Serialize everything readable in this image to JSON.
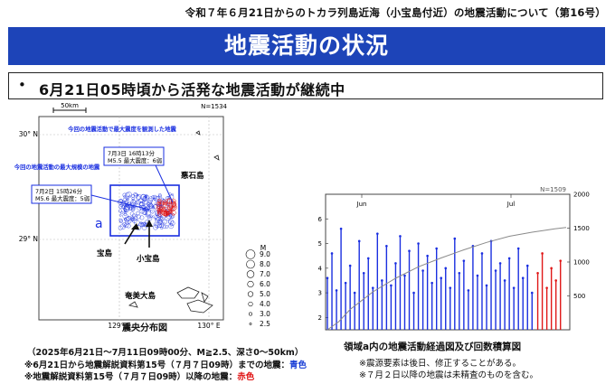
{
  "header": {
    "note": "令和７年６月21日からのトカラ列島近海（小宝島付近）の地震活動について（第16号）"
  },
  "title": "地震活動の状況",
  "bullet": {
    "text": "6月21日05時頃から活発な地震活動が継続中"
  },
  "map": {
    "scale_label": "50km",
    "n_label": "N=1534",
    "lat_labels": [
      "30° N",
      "29° N"
    ],
    "lon_labels": [
      "129° E",
      "130° E"
    ],
    "legend_title": "M",
    "legend_values": [
      "9.0",
      "8.0",
      "7.0",
      "6.0",
      "5.0",
      "4.0",
      "3.0",
      "2.5"
    ],
    "annotation_top": "今回の地震活動で最大震度を観測した地震",
    "annotation_top_box": [
      "7月3日 16時13分",
      "M5.5 最大震度：6弱"
    ],
    "annotation_left": "今回の地震活動の最大規模の地震",
    "annotation_left_box": [
      "7月2日 15時26分",
      "M5.6 最大震度：5弱"
    ],
    "region_label": "a",
    "places": {
      "akuseki": "悪石島",
      "takara": "宝島",
      "kodakara": "小宝島",
      "amami": "奄美大島"
    },
    "caption": "震央分布図",
    "caption_sub": "（2025年6月21日～7月11日09時00分、M≧2.5、深さ0～50km）"
  },
  "footnotes": {
    "line1_a": "※6月21日から地震解説資料第15号（７月７日09時）までの地震：",
    "line1_b": "青色",
    "line2_a": "※地震解説資料第15号（７月７日09時）以降の地震：",
    "line2_b": "赤色"
  },
  "chart_data": {
    "type": "bar",
    "title": "領域a内の地震活動経過図及び回数積算図",
    "n_label": "N=1509",
    "x_tick_labels": [
      "Jun",
      "Jul"
    ],
    "ylim_left": [
      1.5,
      7
    ],
    "y_ticks_left": [
      2,
      3,
      4,
      5,
      6
    ],
    "ylim_right": [
      0,
      2000
    ],
    "y_ticks_right": [
      500,
      1000,
      1500,
      2000
    ],
    "series_colors": {
      "before": "#1a2fe0",
      "after": "#e01818",
      "cumulative": "#8a8a8a"
    },
    "bars": [
      {
        "x": 0,
        "m": 3.6
      },
      {
        "x": 0.4,
        "m": 4.6
      },
      {
        "x": 0.8,
        "m": 3.1
      },
      {
        "x": 1.2,
        "m": 5.6
      },
      {
        "x": 1.6,
        "m": 3.4
      },
      {
        "x": 2.0,
        "m": 4.1
      },
      {
        "x": 2.4,
        "m": 3.0
      },
      {
        "x": 2.8,
        "m": 5.1
      },
      {
        "x": 3.2,
        "m": 3.8
      },
      {
        "x": 3.6,
        "m": 4.4
      },
      {
        "x": 4.0,
        "m": 3.2
      },
      {
        "x": 4.4,
        "m": 5.4
      },
      {
        "x": 4.8,
        "m": 3.5
      },
      {
        "x": 5.2,
        "m": 4.9
      },
      {
        "x": 5.6,
        "m": 3.3
      },
      {
        "x": 6.0,
        "m": 4.2
      },
      {
        "x": 6.4,
        "m": 5.3
      },
      {
        "x": 6.8,
        "m": 3.7
      },
      {
        "x": 7.2,
        "m": 4.7
      },
      {
        "x": 7.6,
        "m": 3.0
      },
      {
        "x": 8.0,
        "m": 5.0
      },
      {
        "x": 8.4,
        "m": 3.9
      },
      {
        "x": 8.8,
        "m": 4.5
      },
      {
        "x": 9.2,
        "m": 3.4
      },
      {
        "x": 9.6,
        "m": 4.8
      },
      {
        "x": 10.0,
        "m": 3.6
      },
      {
        "x": 10.4,
        "m": 4.0
      },
      {
        "x": 10.8,
        "m": 3.2
      },
      {
        "x": 11.2,
        "m": 5.2
      },
      {
        "x": 11.6,
        "m": 3.8
      },
      {
        "x": 12.0,
        "m": 4.3
      },
      {
        "x": 12.4,
        "m": 3.1
      },
      {
        "x": 12.8,
        "m": 4.9
      },
      {
        "x": 13.2,
        "m": 3.7
      },
      {
        "x": 13.6,
        "m": 4.6
      },
      {
        "x": 14.0,
        "m": 3.3
      },
      {
        "x": 14.4,
        "m": 5.1
      },
      {
        "x": 14.8,
        "m": 3.9
      },
      {
        "x": 15.2,
        "m": 4.2
      },
      {
        "x": 15.6,
        "m": 3.5
      },
      {
        "x": 16.0,
        "m": 4.4
      },
      {
        "x": 16.4,
        "m": 3.2
      },
      {
        "x": 16.8,
        "m": 4.8
      },
      {
        "x": 17.2,
        "m": 3.6
      },
      {
        "x": 17.6,
        "m": 4.1
      },
      {
        "x": 18.0,
        "m": 3.0
      },
      {
        "x": 18.5,
        "m": 3.8
      },
      {
        "x": 18.9,
        "m": 4.6
      },
      {
        "x": 19.3,
        "m": 3.2
      },
      {
        "x": 19.7,
        "m": 4.0
      },
      {
        "x": 20.1,
        "m": 3.5
      },
      {
        "x": 20.5,
        "m": 4.3
      }
    ],
    "cumulative": [
      [
        0,
        0
      ],
      [
        1,
        120
      ],
      [
        2,
        300
      ],
      [
        3,
        430
      ],
      [
        4,
        560
      ],
      [
        6,
        760
      ],
      [
        8,
        930
      ],
      [
        10,
        1060
      ],
      [
        12,
        1180
      ],
      [
        14,
        1290
      ],
      [
        16,
        1380
      ],
      [
        18,
        1440
      ],
      [
        20,
        1490
      ],
      [
        21,
        1509
      ]
    ]
  }
}
